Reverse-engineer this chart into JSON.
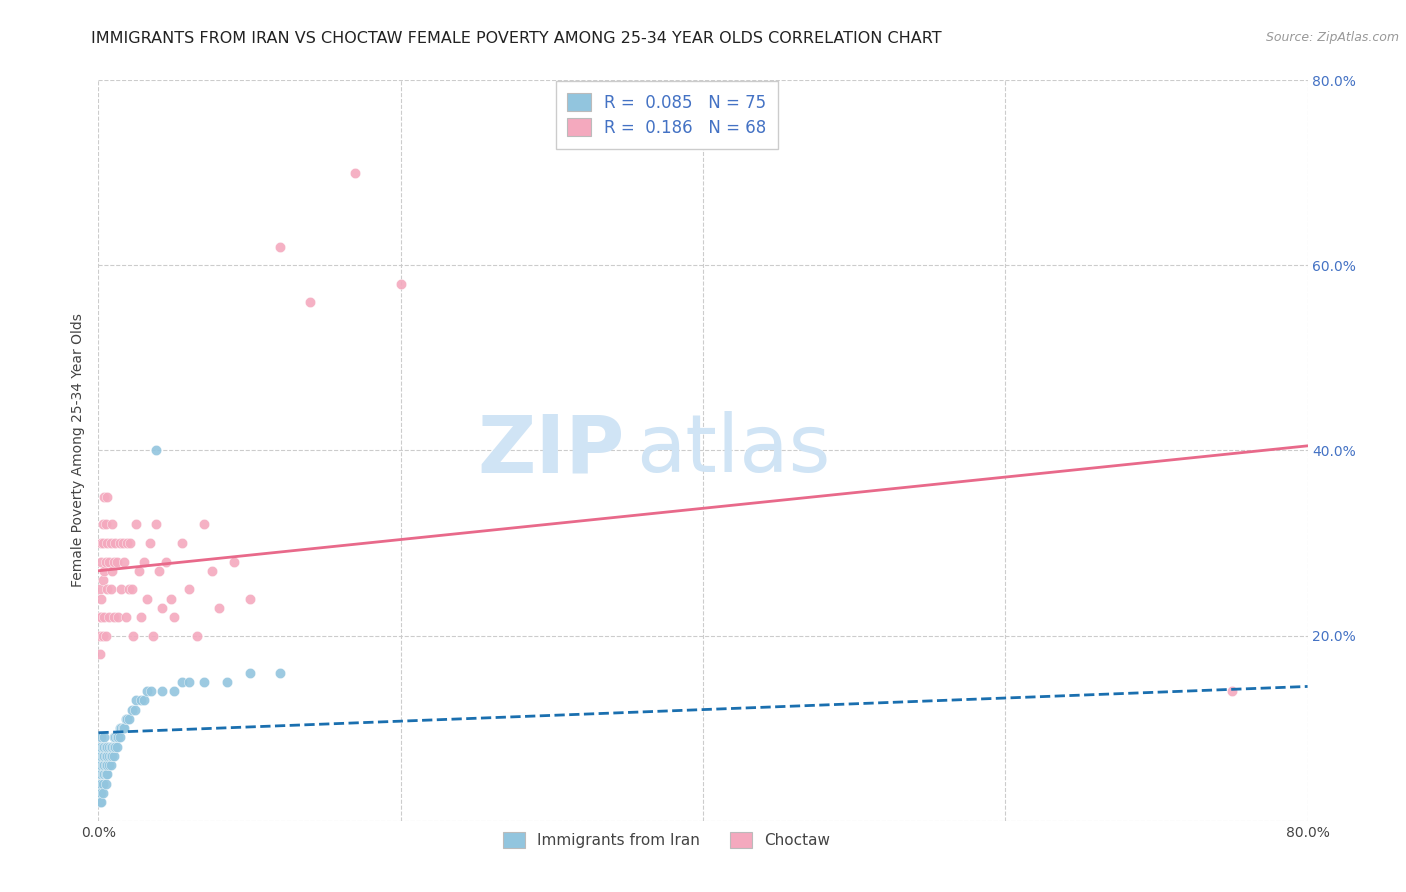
{
  "title": "IMMIGRANTS FROM IRAN VS CHOCTAW FEMALE POVERTY AMONG 25-34 YEAR OLDS CORRELATION CHART",
  "source": "Source: ZipAtlas.com",
  "ylabel": "Female Poverty Among 25-34 Year Olds",
  "xlim": [
    0.0,
    0.8
  ],
  "ylim": [
    0.0,
    0.8
  ],
  "legend_R_blue": "0.085",
  "legend_N_blue": "75",
  "legend_R_pink": "0.186",
  "legend_N_pink": "68",
  "legend_label_blue": "Immigrants from Iran",
  "legend_label_pink": "Choctaw",
  "blue_scatter_color": "#92c5de",
  "pink_scatter_color": "#f4a9be",
  "blue_line_color": "#1a6faf",
  "pink_line_color": "#e8698a",
  "background_color": "#ffffff",
  "watermark_color": "#d0e4f5",
  "title_fontsize": 11.5,
  "axis_label_fontsize": 10,
  "tick_fontsize": 10,
  "right_tick_color": "#4472c4",
  "iran_x": [
    0.001,
    0.001,
    0.001,
    0.001,
    0.001,
    0.001,
    0.001,
    0.002,
    0.002,
    0.002,
    0.002,
    0.002,
    0.002,
    0.002,
    0.002,
    0.003,
    0.003,
    0.003,
    0.003,
    0.003,
    0.003,
    0.004,
    0.004,
    0.004,
    0.004,
    0.004,
    0.005,
    0.005,
    0.005,
    0.005,
    0.005,
    0.006,
    0.006,
    0.006,
    0.006,
    0.007,
    0.007,
    0.007,
    0.008,
    0.008,
    0.008,
    0.009,
    0.009,
    0.01,
    0.01,
    0.01,
    0.011,
    0.011,
    0.012,
    0.012,
    0.013,
    0.014,
    0.014,
    0.015,
    0.016,
    0.017,
    0.018,
    0.019,
    0.02,
    0.022,
    0.024,
    0.025,
    0.028,
    0.03,
    0.032,
    0.035,
    0.038,
    0.042,
    0.05,
    0.055,
    0.06,
    0.07,
    0.085,
    0.1,
    0.12
  ],
  "iran_y": [
    0.04,
    0.05,
    0.06,
    0.07,
    0.08,
    0.03,
    0.02,
    0.05,
    0.04,
    0.06,
    0.07,
    0.08,
    0.09,
    0.03,
    0.02,
    0.05,
    0.06,
    0.07,
    0.08,
    0.04,
    0.03,
    0.05,
    0.06,
    0.07,
    0.08,
    0.09,
    0.05,
    0.06,
    0.07,
    0.08,
    0.04,
    0.05,
    0.06,
    0.07,
    0.08,
    0.06,
    0.07,
    0.08,
    0.06,
    0.07,
    0.08,
    0.07,
    0.08,
    0.07,
    0.08,
    0.09,
    0.08,
    0.09,
    0.08,
    0.09,
    0.09,
    0.09,
    0.1,
    0.1,
    0.1,
    0.1,
    0.11,
    0.11,
    0.11,
    0.12,
    0.12,
    0.13,
    0.13,
    0.13,
    0.14,
    0.14,
    0.4,
    0.14,
    0.14,
    0.15,
    0.15,
    0.15,
    0.15,
    0.16,
    0.16
  ],
  "choctaw_x": [
    0.001,
    0.001,
    0.001,
    0.001,
    0.002,
    0.002,
    0.002,
    0.002,
    0.003,
    0.003,
    0.003,
    0.003,
    0.004,
    0.004,
    0.004,
    0.005,
    0.005,
    0.005,
    0.006,
    0.006,
    0.006,
    0.007,
    0.007,
    0.008,
    0.008,
    0.009,
    0.009,
    0.01,
    0.01,
    0.011,
    0.012,
    0.013,
    0.014,
    0.015,
    0.016,
    0.017,
    0.018,
    0.019,
    0.02,
    0.021,
    0.022,
    0.023,
    0.025,
    0.027,
    0.028,
    0.03,
    0.032,
    0.034,
    0.036,
    0.038,
    0.04,
    0.042,
    0.045,
    0.048,
    0.05,
    0.055,
    0.06,
    0.065,
    0.07,
    0.075,
    0.08,
    0.09,
    0.1,
    0.12,
    0.14,
    0.17,
    0.2,
    0.75
  ],
  "choctaw_y": [
    0.18,
    0.22,
    0.25,
    0.2,
    0.24,
    0.28,
    0.22,
    0.3,
    0.26,
    0.3,
    0.2,
    0.32,
    0.27,
    0.35,
    0.22,
    0.28,
    0.32,
    0.2,
    0.3,
    0.25,
    0.35,
    0.28,
    0.22,
    0.3,
    0.25,
    0.32,
    0.27,
    0.28,
    0.22,
    0.3,
    0.28,
    0.22,
    0.3,
    0.25,
    0.3,
    0.28,
    0.22,
    0.3,
    0.25,
    0.3,
    0.25,
    0.2,
    0.32,
    0.27,
    0.22,
    0.28,
    0.24,
    0.3,
    0.2,
    0.32,
    0.27,
    0.23,
    0.28,
    0.24,
    0.22,
    0.3,
    0.25,
    0.2,
    0.32,
    0.27,
    0.23,
    0.28,
    0.24,
    0.62,
    0.56,
    0.7,
    0.58,
    0.14
  ],
  "iran_trend_x": [
    0.0,
    0.8
  ],
  "iran_trend_y": [
    0.095,
    0.145
  ],
  "choctaw_trend_x": [
    0.0,
    0.8
  ],
  "choctaw_trend_y": [
    0.27,
    0.405
  ]
}
